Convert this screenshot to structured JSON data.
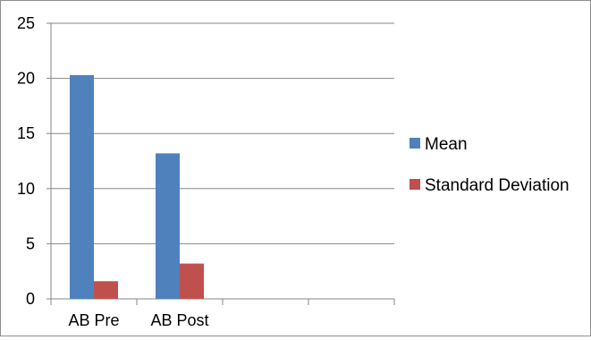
{
  "chart_data": {
    "type": "bar",
    "title": "",
    "xlabel": "",
    "ylabel": "",
    "categories": [
      "AB Pre",
      "AB Post",
      "",
      ""
    ],
    "ylim": [
      0,
      25
    ],
    "yticks": [
      0,
      5,
      10,
      15,
      20,
      25
    ],
    "grid": true,
    "legend_position": "right",
    "series": [
      {
        "name": "Mean",
        "color": "#4f81bd",
        "values": [
          20.3,
          13.2,
          null,
          null
        ]
      },
      {
        "name": "Standard Deviation",
        "color": "#c0504d",
        "values": [
          1.6,
          3.2,
          null,
          null
        ]
      }
    ]
  }
}
